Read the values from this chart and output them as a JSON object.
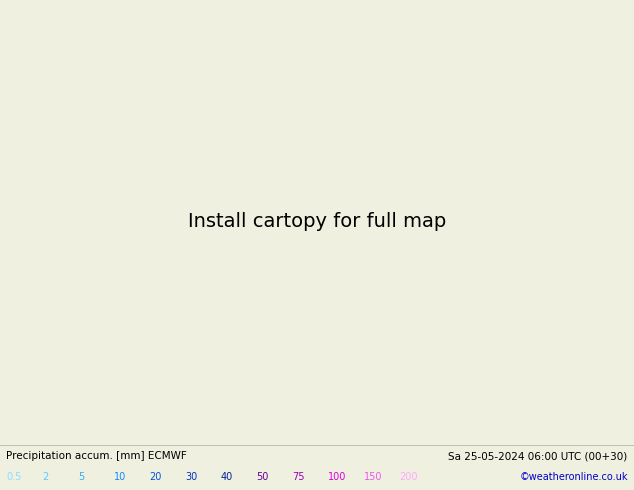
{
  "title_left": "Precipitation accum. [mm] ECMWF",
  "title_right": "Sa 25-05-2024 06:00 UTC (00+30)",
  "credit": "©weatheronline.co.uk",
  "legend_values": [
    "0.5",
    "2",
    "5",
    "10",
    "20",
    "30",
    "40",
    "50",
    "75",
    "100",
    "150",
    "200"
  ],
  "legend_text_colors": [
    "#88ddff",
    "#55ccff",
    "#33aaff",
    "#1188ff",
    "#0055dd",
    "#0033bb",
    "#002299",
    "#660099",
    "#9900bb",
    "#dd00dd",
    "#ee55ee",
    "#ffaaff"
  ],
  "precip_levels": [
    0.5,
    2,
    5,
    10,
    20,
    30,
    40,
    50,
    75,
    100,
    150,
    200
  ],
  "precip_colors": [
    "#b3e5ff",
    "#80d0ff",
    "#4db8ff",
    "#1a9fff",
    "#0066dd",
    "#0044bb",
    "#003399",
    "#660099",
    "#9900bb",
    "#dd00dd",
    "#ee55ee",
    "#ffaaff"
  ],
  "isobar_red": "#dd0000",
  "isobar_blue": "#0000cc",
  "ocean_color": "#d4eeff",
  "land_color": "#c8e8a0",
  "land_dry_color": "#d8e8b0",
  "mountain_color": "#c8c0b0",
  "bg_color": "#f0f0e0",
  "map_extent": [
    -55,
    45,
    27,
    72
  ],
  "figsize": [
    6.34,
    4.9
  ],
  "dpi": 100
}
